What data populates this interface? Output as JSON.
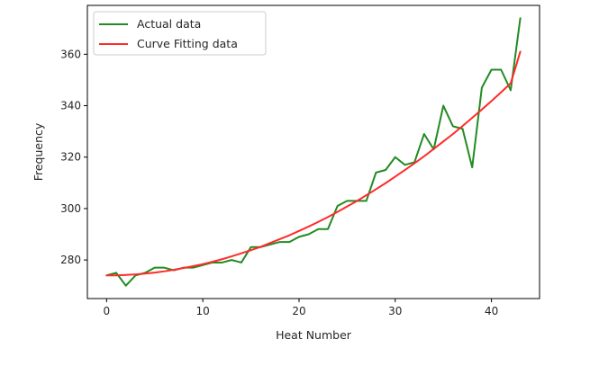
{
  "chart_data": {
    "type": "line",
    "title": "",
    "xlabel": "Heat Number",
    "ylabel": "Frequency",
    "xlim": [
      -2,
      45
    ],
    "ylim": [
      265,
      379
    ],
    "x_ticks": [
      0,
      10,
      20,
      30,
      40
    ],
    "y_ticks": [
      280,
      300,
      320,
      340,
      360
    ],
    "grid": false,
    "legend_position": "top-left",
    "x": [
      0,
      1,
      2,
      3,
      4,
      5,
      6,
      7,
      8,
      9,
      10,
      11,
      12,
      13,
      14,
      15,
      16,
      17,
      18,
      19,
      20,
      21,
      22,
      23,
      24,
      25,
      26,
      27,
      28,
      29,
      30,
      31,
      32,
      33,
      34,
      35,
      36,
      37,
      38,
      39,
      40,
      41,
      42,
      43
    ],
    "series": [
      {
        "name": "Actual data",
        "color": "#228b22",
        "values": [
          274,
          275,
          270,
          274,
          275,
          277,
          277,
          276,
          277,
          277,
          278,
          279,
          279,
          280,
          279,
          285,
          285,
          286,
          287,
          287,
          289,
          290,
          292,
          292,
          301,
          303,
          303,
          303,
          314,
          315,
          320,
          317,
          318,
          329,
          323,
          340,
          332,
          331,
          316,
          347,
          354,
          354,
          346,
          374
        ]
      },
      {
        "name": "Curve Fitting data",
        "color": "#ff2a2a",
        "values": [
          274.0,
          274.0,
          274.2,
          274.4,
          274.7,
          275.1,
          275.6,
          276.2,
          276.9,
          277.6,
          278.4,
          279.3,
          280.3,
          281.4,
          282.6,
          283.8,
          285.1,
          286.6,
          288.1,
          289.6,
          291.3,
          293.0,
          294.8,
          296.7,
          298.7,
          300.8,
          302.9,
          305.2,
          307.5,
          309.9,
          312.4,
          315.0,
          317.6,
          320.3,
          323.2,
          326.1,
          329.0,
          332.1,
          335.3,
          338.5,
          341.8,
          345.2,
          348.7,
          361.0
        ]
      }
    ]
  }
}
